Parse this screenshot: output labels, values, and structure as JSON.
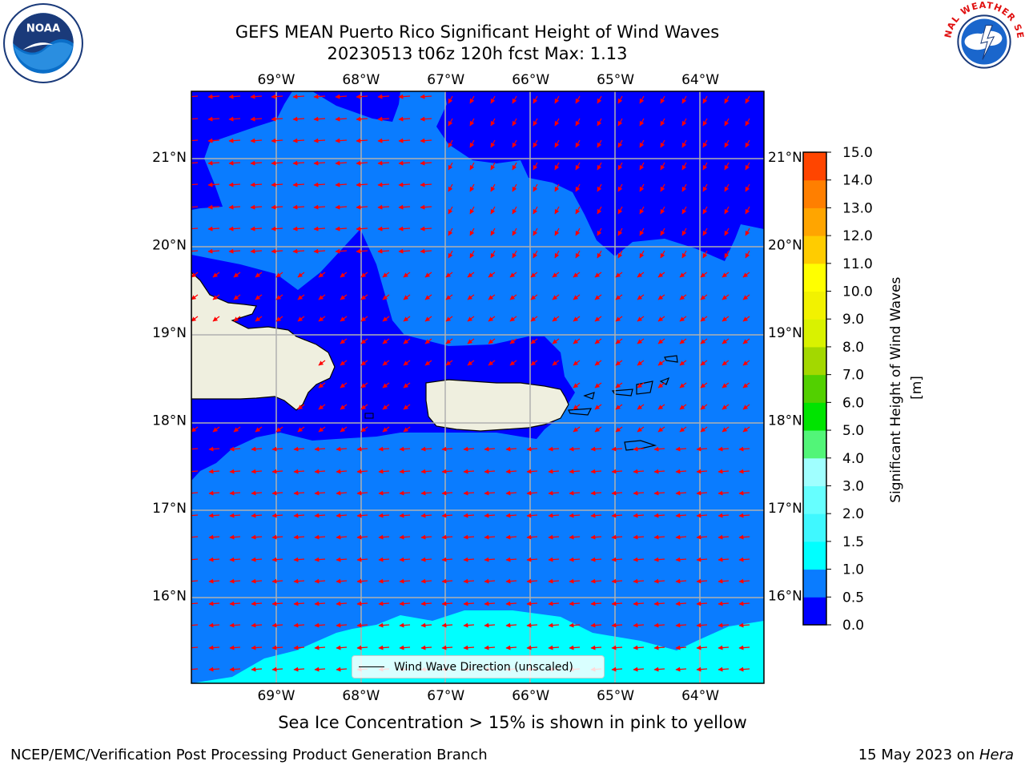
{
  "title": {
    "line1": "GEFS MEAN Puerto Rico Significant Height of Wind Waves",
    "line2": "20230513 t06z 120h fcst   Max: 1.13"
  },
  "logos": {
    "left": {
      "text": "NOAA",
      "icon": "noaa-logo"
    },
    "right": {
      "text": "NATIONAL WEATHER SERVICE",
      "icon": "nws-logo"
    }
  },
  "map": {
    "lon_labels": [
      "69°W",
      "68°W",
      "67°W",
      "66°W",
      "65°W",
      "64°W"
    ],
    "lat_labels": [
      "21°N",
      "20°N",
      "19°N",
      "18°N",
      "17°N",
      "16°N"
    ],
    "lon_range": [
      -70,
      -63.25
    ],
    "lat_range": [
      15,
      21.75
    ],
    "grid": true,
    "land_color": "#efefdf",
    "arrow_color": "#ff0000"
  },
  "colorbar": {
    "label": "Significant Height of Wind Waves [m]",
    "ticks": [
      "0.0",
      "0.5",
      "1.0",
      "1.5",
      "2.0",
      "3.0",
      "4.0",
      "5.0",
      "6.0",
      "7.0",
      "8.0",
      "9.0",
      "10.0",
      "11.0",
      "12.0",
      "13.0",
      "14.0",
      "15.0"
    ],
    "colors": [
      "#0000ff",
      "#0a7cff",
      "#00ffff",
      "#3ff8ff",
      "#66ffff",
      "#a0ffff",
      "#52f578",
      "#00e400",
      "#52d000",
      "#a3d800",
      "#d9f200",
      "#f2f200",
      "#ffff00",
      "#ffcc00",
      "#ffa500",
      "#ff7f00",
      "#ff4500",
      "#ff2400",
      "#ff0000"
    ]
  },
  "legend": {
    "label": "Wind Wave Direction (unscaled)"
  },
  "caption": "Sea Ice Concentration > 15% is shown in pink to yellow",
  "footer": {
    "left": "NCEP/EMC/Verification Post Processing Product Generation Branch",
    "right_date": "15 May 2023 on ",
    "right_host": "Hera"
  }
}
